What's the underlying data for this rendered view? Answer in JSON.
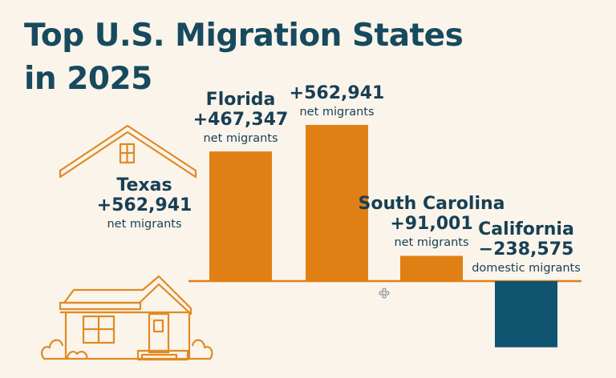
{
  "title_lines": [
    "Top U.S. Migration States",
    "in 2025"
  ],
  "colors": {
    "background": "#FAF4EB",
    "positive_bar": "#E07F14",
    "negative_bar": "#0F5570",
    "text": "#173F54",
    "house_outline": "#E08A24"
  },
  "icons": {
    "house": "house-icon",
    "move_cursor": "move-cursor-icon"
  },
  "chart_data": {
    "type": "bar",
    "title": "Top U.S. Migration States in 2025",
    "categories": [
      "Texas",
      "Florida",
      "",
      "South Carolina",
      "California"
    ],
    "values": [
      562941,
      467347,
      562941,
      91001,
      -238575
    ],
    "value_labels": [
      "+562,941",
      "+467,347",
      "+562,941",
      "+91,001",
      "−238,575"
    ],
    "units": [
      "net migrants",
      "net migrants",
      "net migrants",
      "net migrants",
      "domestic migrants"
    ],
    "bar_drawn": [
      false,
      true,
      true,
      true,
      true
    ],
    "bar_colors": [
      "#E07F14",
      "#E07F14",
      "#E07F14",
      "#E07F14",
      "#0F5570"
    ],
    "baseline": 0,
    "grid": false,
    "legend": "none"
  }
}
